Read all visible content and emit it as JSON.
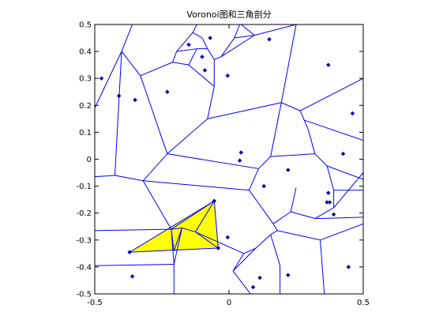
{
  "chart_data": {
    "type": "scatter",
    "title": "Voronoi图和三角剖分",
    "xlabel": "",
    "ylabel": "",
    "xlim": [
      -0.5,
      0.5
    ],
    "ylim": [
      -0.5,
      0.5
    ],
    "x_ticks": [
      -0.5,
      0,
      0.5
    ],
    "x_tick_labels": [
      "-0.5",
      "0",
      "0.5"
    ],
    "y_ticks": [
      0.5,
      0.4,
      0.3,
      0.2,
      0.1,
      0,
      -0.1,
      -0.2,
      -0.3,
      -0.4,
      -0.5
    ],
    "y_tick_labels": [
      "0.5",
      "0.4",
      "0.3",
      "0.2",
      "0.1",
      "0",
      "-0.1",
      "-0.2",
      "-0.3",
      "-0.4",
      "-0.5"
    ],
    "grid": false,
    "colors": {
      "voronoi_edges": "#0000ff",
      "points": "#0000aa",
      "highlight_fill": "#ffff00",
      "axes": "#000000"
    },
    "points": [
      {
        "x": -0.475,
        "y": 0.3
      },
      {
        "x": -0.41,
        "y": 0.235
      },
      {
        "x": -0.35,
        "y": 0.22
      },
      {
        "x": -0.23,
        "y": 0.25
      },
      {
        "x": -0.15,
        "y": 0.425
      },
      {
        "x": -0.1,
        "y": 0.38
      },
      {
        "x": -0.09,
        "y": 0.33
      },
      {
        "x": -0.07,
        "y": 0.45
      },
      {
        "x": -0.005,
        "y": 0.31
      },
      {
        "x": 0.15,
        "y": 0.445
      },
      {
        "x": 0.37,
        "y": 0.35
      },
      {
        "x": 0.46,
        "y": 0.17
      },
      {
        "x": 0.045,
        "y": 0.025
      },
      {
        "x": 0.04,
        "y": -0.005
      },
      {
        "x": 0.13,
        "y": -0.1
      },
      {
        "x": 0.22,
        "y": -0.04
      },
      {
        "x": 0.425,
        "y": 0.02
      },
      {
        "x": 0.37,
        "y": -0.125
      },
      {
        "x": 0.365,
        "y": -0.16
      },
      {
        "x": 0.375,
        "y": -0.16
      },
      {
        "x": 0.39,
        "y": -0.205
      },
      {
        "x": -0.055,
        "y": -0.155
      },
      {
        "x": -0.005,
        "y": -0.29
      },
      {
        "x": -0.04,
        "y": -0.33
      },
      {
        "x": -0.37,
        "y": -0.345
      },
      {
        "x": -0.36,
        "y": -0.435
      },
      {
        "x": 0.09,
        "y": -0.475
      },
      {
        "x": 0.115,
        "y": -0.44
      },
      {
        "x": 0.22,
        "y": -0.43
      },
      {
        "x": 0.445,
        "y": -0.4
      }
    ],
    "voronoi_edges": [
      [
        [
          -0.5,
          0.19
        ],
        [
          -0.4,
          0.4
        ]
      ],
      [
        [
          -0.4,
          0.4
        ],
        [
          -0.36,
          0.5
        ]
      ],
      [
        [
          -0.4,
          0.4
        ],
        [
          -0.33,
          0.31
        ]
      ],
      [
        [
          -0.33,
          0.31
        ],
        [
          -0.23,
          0.02
        ]
      ],
      [
        [
          -0.4,
          0.4
        ],
        [
          -0.425,
          -0.06
        ]
      ],
      [
        [
          -0.425,
          -0.06
        ],
        [
          -0.5,
          -0.065
        ]
      ],
      [
        [
          -0.425,
          -0.06
        ],
        [
          -0.32,
          -0.08
        ]
      ],
      [
        [
          -0.32,
          -0.08
        ],
        [
          -0.23,
          0.02
        ]
      ],
      [
        [
          -0.33,
          0.31
        ],
        [
          -0.21,
          0.36
        ]
      ],
      [
        [
          -0.21,
          0.36
        ],
        [
          -0.195,
          0.4
        ]
      ],
      [
        [
          -0.195,
          0.4
        ],
        [
          -0.135,
          0.47
        ]
      ],
      [
        [
          -0.135,
          0.47
        ],
        [
          -0.12,
          0.5
        ]
      ],
      [
        [
          -0.135,
          0.47
        ],
        [
          -0.1,
          0.45
        ]
      ],
      [
        [
          -0.1,
          0.45
        ],
        [
          -0.08,
          0.41
        ]
      ],
      [
        [
          -0.195,
          0.4
        ],
        [
          -0.12,
          0.41
        ]
      ],
      [
        [
          -0.12,
          0.41
        ],
        [
          -0.08,
          0.41
        ]
      ],
      [
        [
          -0.12,
          0.41
        ],
        [
          -0.15,
          0.35
        ]
      ],
      [
        [
          -0.15,
          0.35
        ],
        [
          -0.21,
          0.36
        ]
      ],
      [
        [
          -0.15,
          0.35
        ],
        [
          -0.055,
          0.27
        ]
      ],
      [
        [
          -0.08,
          0.41
        ],
        [
          -0.055,
          0.37
        ]
      ],
      [
        [
          -0.055,
          0.37
        ],
        [
          -0.03,
          0.38
        ]
      ],
      [
        [
          -0.055,
          0.37
        ],
        [
          -0.055,
          0.27
        ]
      ],
      [
        [
          -0.055,
          0.27
        ],
        [
          -0.08,
          0.15
        ]
      ],
      [
        [
          -0.08,
          0.15
        ],
        [
          -0.23,
          0.02
        ]
      ],
      [
        [
          -0.08,
          0.15
        ],
        [
          0.195,
          0.21
        ]
      ],
      [
        [
          -0.03,
          0.38
        ],
        [
          0.02,
          0.45
        ]
      ],
      [
        [
          0.02,
          0.45
        ],
        [
          0.04,
          0.5
        ]
      ],
      [
        [
          0.02,
          0.45
        ],
        [
          0.095,
          0.46
        ]
      ],
      [
        [
          0.095,
          0.46
        ],
        [
          0.045,
          0.5
        ]
      ],
      [
        [
          -0.03,
          0.38
        ],
        [
          0.095,
          0.46
        ]
      ],
      [
        [
          0.095,
          0.46
        ],
        [
          0.25,
          0.5
        ]
      ],
      [
        [
          0.25,
          0.5
        ],
        [
          0.195,
          0.21
        ]
      ],
      [
        [
          0.195,
          0.21
        ],
        [
          0.265,
          0.18
        ]
      ],
      [
        [
          0.265,
          0.18
        ],
        [
          0.5,
          0.3
        ]
      ],
      [
        [
          0.265,
          0.18
        ],
        [
          0.28,
          0.145
        ]
      ],
      [
        [
          0.28,
          0.145
        ],
        [
          0.5,
          0.07
        ]
      ],
      [
        [
          0.28,
          0.145
        ],
        [
          0.295,
          0.11
        ]
      ],
      [
        [
          0.295,
          0.11
        ],
        [
          0.32,
          0.02
        ]
      ],
      [
        [
          0.32,
          0.02
        ],
        [
          0.365,
          -0.025
        ]
      ],
      [
        [
          0.365,
          -0.025
        ],
        [
          0.5,
          -0.075
        ]
      ],
      [
        [
          0.365,
          -0.025
        ],
        [
          0.39,
          -0.115
        ]
      ],
      [
        [
          0.39,
          -0.115
        ],
        [
          0.5,
          -0.115
        ]
      ],
      [
        [
          0.39,
          -0.115
        ],
        [
          0.39,
          -0.18
        ]
      ],
      [
        [
          0.39,
          -0.18
        ],
        [
          0.5,
          -0.05
        ]
      ],
      [
        [
          0.195,
          0.21
        ],
        [
          0.155,
          0.01
        ]
      ],
      [
        [
          0.155,
          0.01
        ],
        [
          0.32,
          0.02
        ]
      ],
      [
        [
          0.155,
          0.01
        ],
        [
          0.11,
          -0.035
        ]
      ],
      [
        [
          0.11,
          -0.035
        ],
        [
          -0.23,
          0.02
        ]
      ],
      [
        [
          0.11,
          -0.035
        ],
        [
          0.075,
          -0.115
        ]
      ],
      [
        [
          0.075,
          -0.115
        ],
        [
          -0.32,
          -0.08
        ]
      ],
      [
        [
          0.075,
          -0.115
        ],
        [
          0.165,
          -0.24
        ]
      ],
      [
        [
          0.165,
          -0.24
        ],
        [
          0.23,
          -0.195
        ]
      ],
      [
        [
          0.23,
          -0.195
        ],
        [
          0.32,
          -0.22
        ]
      ],
      [
        [
          0.32,
          -0.22
        ],
        [
          0.39,
          -0.18
        ]
      ],
      [
        [
          0.32,
          -0.22
        ],
        [
          0.345,
          -0.22
        ]
      ],
      [
        [
          0.345,
          -0.22
        ],
        [
          0.5,
          -0.215
        ]
      ],
      [
        [
          0.23,
          -0.195
        ],
        [
          0.25,
          -0.105
        ]
      ],
      [
        [
          0.165,
          -0.24
        ],
        [
          0.18,
          -0.265
        ]
      ],
      [
        [
          0.18,
          -0.265
        ],
        [
          0.34,
          -0.3
        ]
      ],
      [
        [
          0.34,
          -0.3
        ],
        [
          0.5,
          -0.24
        ]
      ],
      [
        [
          0.34,
          -0.3
        ],
        [
          0.355,
          -0.5
        ]
      ],
      [
        [
          0.18,
          -0.265
        ],
        [
          0.155,
          -0.28
        ]
      ],
      [
        [
          0.155,
          -0.28
        ],
        [
          0.1,
          -0.33
        ]
      ],
      [
        [
          0.1,
          -0.33
        ],
        [
          0.015,
          -0.415
        ]
      ],
      [
        [
          0.015,
          -0.415
        ],
        [
          0.08,
          -0.5
        ]
      ],
      [
        [
          0.155,
          -0.28
        ],
        [
          0.19,
          -0.395
        ]
      ],
      [
        [
          0.19,
          -0.395
        ],
        [
          0.19,
          -0.5
        ]
      ],
      [
        [
          0.1,
          -0.33
        ],
        [
          0.055,
          -0.35
        ]
      ],
      [
        [
          0.055,
          -0.35
        ],
        [
          0.015,
          -0.415
        ]
      ],
      [
        [
          -0.32,
          -0.08
        ],
        [
          -0.215,
          -0.26
        ]
      ],
      [
        [
          -0.215,
          -0.26
        ],
        [
          -0.5,
          -0.265
        ]
      ],
      [
        [
          -0.215,
          -0.26
        ],
        [
          -0.175,
          -0.255
        ]
      ],
      [
        [
          -0.175,
          -0.255
        ],
        [
          -0.125,
          -0.27
        ]
      ],
      [
        [
          -0.125,
          -0.27
        ],
        [
          0.055,
          -0.35
        ]
      ],
      [
        [
          -0.5,
          -0.395
        ],
        [
          -0.205,
          -0.39
        ]
      ],
      [
        [
          -0.205,
          -0.39
        ],
        [
          -0.215,
          -0.26
        ]
      ],
      [
        [
          -0.205,
          -0.39
        ],
        [
          -0.205,
          -0.5
        ]
      ],
      [
        [
          -0.205,
          -0.39
        ],
        [
          -0.175,
          -0.255
        ]
      ]
    ],
    "highlight_triangles": [
      [
        [
          -0.37,
          -0.345
        ],
        [
          -0.055,
          -0.155
        ],
        [
          -0.04,
          -0.33
        ]
      ]
    ],
    "triangle_internal_edges": [
      [
        [
          -0.215,
          -0.26
        ],
        [
          -0.205,
          -0.34
        ]
      ],
      [
        [
          -0.215,
          -0.26
        ],
        [
          -0.055,
          -0.155
        ]
      ],
      [
        [
          -0.125,
          -0.27
        ],
        [
          -0.055,
          -0.155
        ]
      ],
      [
        [
          -0.125,
          -0.27
        ],
        [
          -0.04,
          -0.33
        ]
      ],
      [
        [
          -0.175,
          -0.255
        ],
        [
          -0.205,
          -0.34
        ]
      ]
    ]
  }
}
